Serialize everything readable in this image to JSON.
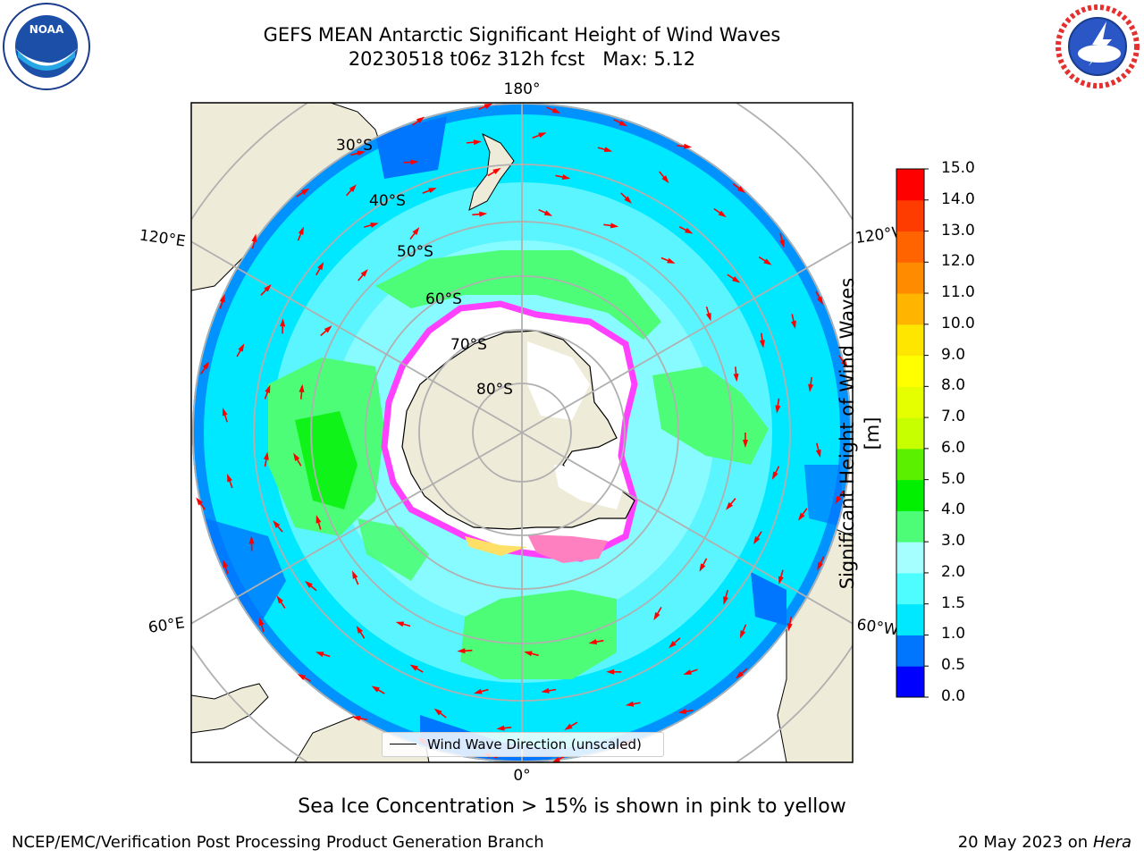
{
  "header": {
    "title_line1": "GEFS MEAN Antarctic Significant Height of Wind Waves",
    "title_line2": "20230518 t06z 312h fcst   Max: 5.12"
  },
  "map": {
    "projection": "south polar stereographic",
    "meridian_labels": [
      "180°",
      "120°E",
      "120°W",
      "60°E",
      "60°W",
      "0°"
    ],
    "parallel_labels": [
      "30°S",
      "40°S",
      "50°S",
      "60°S",
      "70°S",
      "80°S"
    ],
    "legend_entry": "Wind Wave Direction (unscaled)",
    "arrow_color": "#ff0000",
    "land_color": "#efebd9",
    "grid_color": "#b0b0b0"
  },
  "colorbar": {
    "title": "Significant Height of Wind Waves [m]",
    "tick_labels": [
      "0.0",
      "0.5",
      "1.0",
      "1.5",
      "2.0",
      "3.0",
      "4.0",
      "5.0",
      "6.0",
      "7.0",
      "8.0",
      "9.0",
      "10.0",
      "11.0",
      "12.0",
      "13.0",
      "14.0",
      "15.0"
    ],
    "colors": [
      "#0000ff",
      "#0076ff",
      "#00e8ff",
      "#4dfdff",
      "#a5ffff",
      "#4dfd77",
      "#00f000",
      "#5af000",
      "#c7ff00",
      "#e6ff00",
      "#ffff00",
      "#ffe600",
      "#ffb400",
      "#ff8c00",
      "#ff6400",
      "#ff3c00",
      "#ff0000"
    ]
  },
  "footer": {
    "sea_ice_note": "Sea Ice Concentration > 15% is shown in pink to yellow",
    "credit": "NCEP/EMC/Verification Post Processing Product Generation Branch",
    "date_prefix": "20 May 2023 on",
    "date_system": "Hera"
  },
  "logos": {
    "left": "NOAA",
    "right": "NATIONAL WEATHER SERVICE"
  }
}
